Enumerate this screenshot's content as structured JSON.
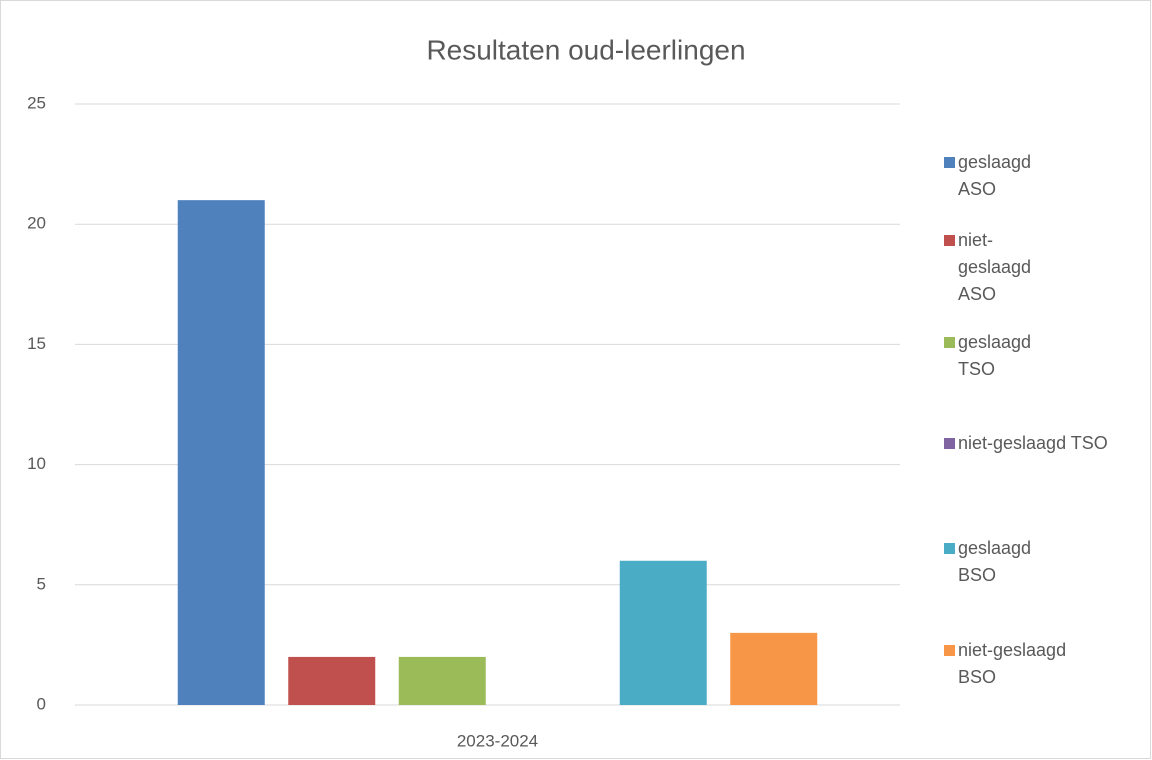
{
  "chart_data": {
    "type": "bar",
    "title": "Resultaten oud-leerlingen",
    "categories": [
      "2023-2024"
    ],
    "series": [
      {
        "name": "geslaagd ASO",
        "color": "#4f81bd",
        "values": [
          21
        ]
      },
      {
        "name": "niet-geslaagd ASO",
        "color": "#c0504d",
        "values": [
          2
        ]
      },
      {
        "name": "geslaagd TSO",
        "color": "#9bbb59",
        "values": [
          2
        ]
      },
      {
        "name": "niet-geslaagd TSO",
        "color": "#8064a2",
        "values": [
          0
        ]
      },
      {
        "name": "geslaagd BSO",
        "color": "#4bacc6",
        "values": [
          6
        ]
      },
      {
        "name": "niet-geslaagd BSO",
        "color": "#f79646",
        "values": [
          3
        ]
      }
    ],
    "ylim": [
      0,
      25
    ],
    "yticks": [
      0,
      5,
      10,
      15,
      20,
      25
    ],
    "grid": true,
    "legend": "right"
  }
}
